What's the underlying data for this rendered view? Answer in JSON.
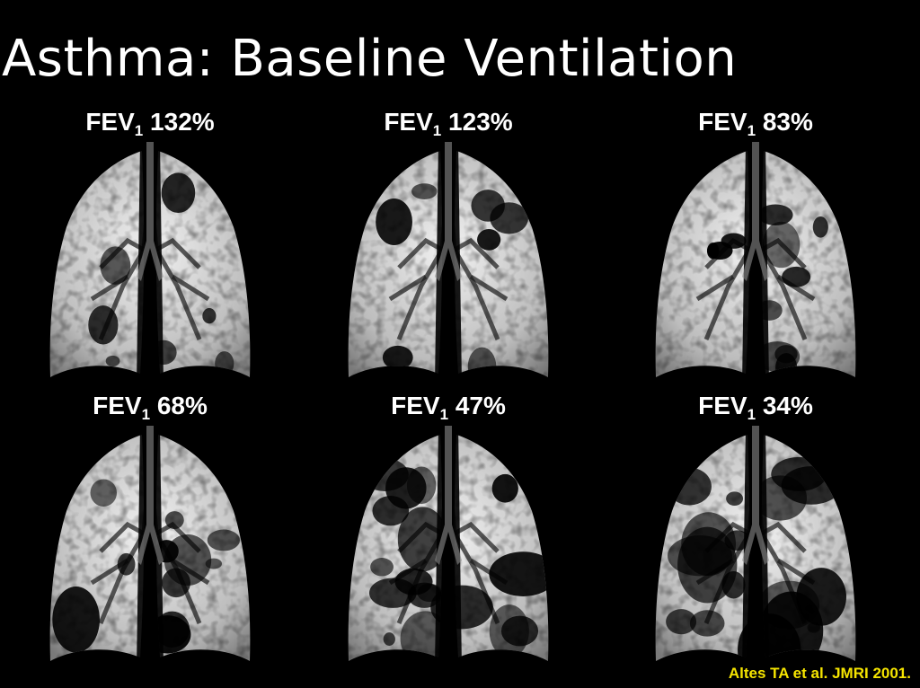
{
  "slide": {
    "title": "Asthma: Baseline Ventilation",
    "citation": "Altes TA et al. JMRI 2001."
  },
  "panels": [
    {
      "label_main": "FEV",
      "label_sub": "1",
      "label_value": "132%",
      "ventilation_defect_level": "minimal"
    },
    {
      "label_main": "FEV",
      "label_sub": "1",
      "label_value": "123%",
      "ventilation_defect_level": "minimal"
    },
    {
      "label_main": "FEV",
      "label_sub": "1",
      "label_value": "83%",
      "ventilation_defect_level": "moderate"
    },
    {
      "label_main": "FEV",
      "label_sub": "1",
      "label_value": "68%",
      "ventilation_defect_level": "moderate"
    },
    {
      "label_main": "FEV",
      "label_sub": "1",
      "label_value": "47%",
      "ventilation_defect_level": "severe"
    },
    {
      "label_main": "FEV",
      "label_sub": "1",
      "label_value": "34%",
      "ventilation_defect_level": "severe"
    }
  ],
  "colors": {
    "background": "#000000",
    "text": "#ffffff",
    "citation": "#f5e400"
  }
}
